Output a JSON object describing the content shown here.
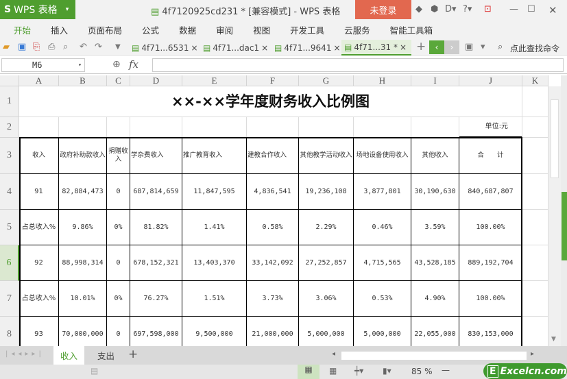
{
  "app": {
    "name": "WPS 表格",
    "doc_title": "4f7120925cd231 * [兼容模式] - WPS 表格",
    "login": "未登录"
  },
  "menu": [
    "开始",
    "插入",
    "页面布局",
    "公式",
    "数据",
    "审阅",
    "视图",
    "开发工具",
    "云服务",
    "智能工具箱"
  ],
  "doc_tabs": [
    {
      "label": "4f71...6531"
    },
    {
      "label": "4f71...dac1"
    },
    {
      "label": "4f71...9641"
    },
    {
      "label": "4f71...31 *",
      "active": true
    }
  ],
  "search_command": "点此查找命令",
  "formula_bar": {
    "cell_ref": "M6",
    "fx": "fx",
    "value": ""
  },
  "columns": [
    "A",
    "B",
    "C",
    "D",
    "E",
    "F",
    "G",
    "H",
    "I",
    "J",
    "K"
  ],
  "rows": [
    "1",
    "2",
    "3",
    "4",
    "5",
    "6",
    "7",
    "8"
  ],
  "selected_row": "6",
  "sheet": {
    "title": "××-××学年度财务收入比例图",
    "unit": "单位:元",
    "headers": [
      "收入",
      "政府补助款收入",
      "捐赠收入",
      "学杂费收入",
      "推广教育收入",
      "建教合作收入",
      "其他教学活动收入",
      "场地设备使用收入",
      "其他收入",
      "合　　计"
    ],
    "data": [
      [
        "91",
        "82,884,473",
        "0",
        "687,814,659",
        "11,847,595",
        "4,836,541",
        "19,236,108",
        "3,877,801",
        "30,190,630",
        "840,687,807"
      ],
      [
        "占总收入%",
        "9.86%",
        "0%",
        "81.82%",
        "1.41%",
        "0.58%",
        "2.29%",
        "0.46%",
        "3.59%",
        "100.00%"
      ],
      [
        "92",
        "88,998,314",
        "0",
        "678,152,321",
        "13,403,370",
        "33,142,092",
        "27,252,857",
        "4,715,565",
        "43,528,185",
        "889,192,704"
      ],
      [
        "占总收入%",
        "10.01%",
        "0%",
        "76.27%",
        "1.51%",
        "3.73%",
        "3.06%",
        "0.53%",
        "4.90%",
        "100.00%"
      ],
      [
        "93",
        "70,000,000",
        "0",
        "697,598,000",
        "9,500,000",
        "21,000,000",
        "5,000,000",
        "5,000,000",
        "22,055,000",
        "830,153,000"
      ]
    ]
  },
  "sheet_tabs": [
    {
      "label": "收入",
      "active": true
    },
    {
      "label": "支出"
    }
  ],
  "status": {
    "zoom": "85 %"
  },
  "watermark": "Excelcn.com",
  "colors": {
    "accent": "#4f9e2f",
    "login": "#e2684f"
  }
}
